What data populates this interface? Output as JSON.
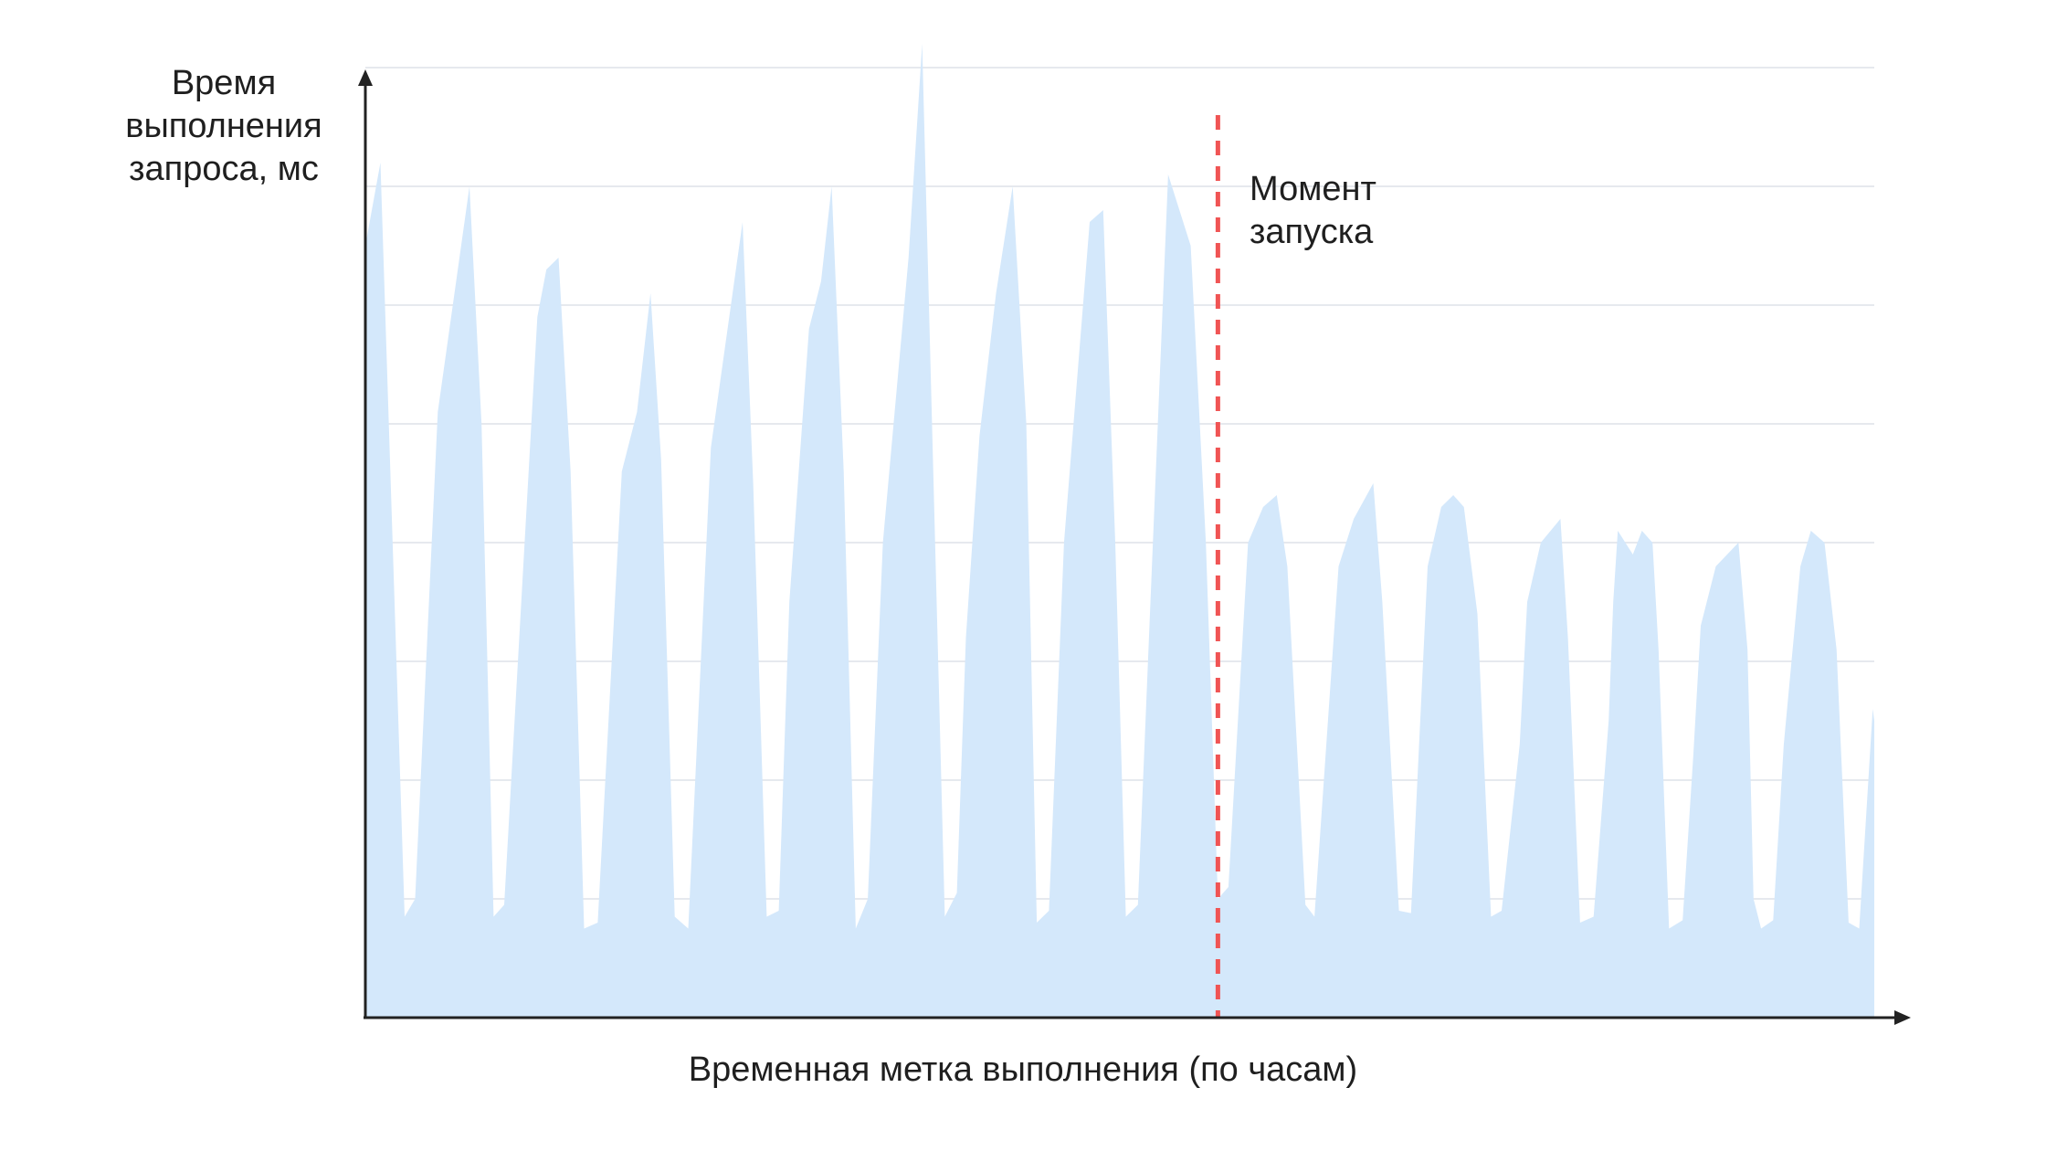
{
  "chart_data": {
    "type": "area",
    "ylabel": [
      "Время",
      "выполнения",
      "запроса, мс"
    ],
    "xlabel": "Временная метка выполнения (по часам)",
    "marker": {
      "label": [
        "Момент",
        "запуска"
      ],
      "x": 0.565
    },
    "xlim": [
      0,
      1
    ],
    "ylim": [
      0,
      8
    ],
    "grid": true,
    "fill_color": "#d4e8fb",
    "marker_color": "#f05454",
    "axis_color": "#222222",
    "grid_color": "#e6e9ee",
    "points": [
      [
        0.0,
        6.5
      ],
      [
        0.01,
        7.2
      ],
      [
        0.026,
        0.85
      ],
      [
        0.033,
        1.0
      ],
      [
        0.048,
        5.1
      ],
      [
        0.069,
        7.0
      ],
      [
        0.077,
        5.0
      ],
      [
        0.085,
        0.85
      ],
      [
        0.092,
        0.95
      ],
      [
        0.114,
        5.9
      ],
      [
        0.12,
        6.3
      ],
      [
        0.128,
        6.4
      ],
      [
        0.136,
        4.6
      ],
      [
        0.145,
        0.75
      ],
      [
        0.154,
        0.8
      ],
      [
        0.17,
        4.6
      ],
      [
        0.18,
        5.1
      ],
      [
        0.189,
        6.1
      ],
      [
        0.196,
        4.7
      ],
      [
        0.205,
        0.85
      ],
      [
        0.214,
        0.75
      ],
      [
        0.229,
        4.8
      ],
      [
        0.25,
        6.7
      ],
      [
        0.257,
        4.5
      ],
      [
        0.266,
        0.85
      ],
      [
        0.274,
        0.9
      ],
      [
        0.281,
        3.5
      ],
      [
        0.294,
        5.8
      ],
      [
        0.302,
        6.2
      ],
      [
        0.309,
        7.0
      ],
      [
        0.317,
        4.6
      ],
      [
        0.325,
        0.75
      ],
      [
        0.333,
        1.0
      ],
      [
        0.343,
        4.0
      ],
      [
        0.36,
        6.4
      ],
      [
        0.369,
        8.2
      ],
      [
        0.384,
        0.85
      ],
      [
        0.392,
        1.05
      ],
      [
        0.398,
        3.2
      ],
      [
        0.407,
        4.9
      ],
      [
        0.418,
        6.1
      ],
      [
        0.429,
        7.0
      ],
      [
        0.438,
        5.0
      ],
      [
        0.445,
        0.8
      ],
      [
        0.453,
        0.9
      ],
      [
        0.463,
        4.0
      ],
      [
        0.48,
        6.7
      ],
      [
        0.489,
        6.8
      ],
      [
        0.497,
        4.0
      ],
      [
        0.504,
        0.85
      ],
      [
        0.512,
        0.95
      ],
      [
        0.532,
        7.1
      ],
      [
        0.547,
        6.5
      ],
      [
        0.557,
        4.0
      ],
      [
        0.565,
        1.0
      ],
      [
        0.572,
        1.1
      ],
      [
        0.585,
        4.0
      ],
      [
        0.595,
        4.3
      ],
      [
        0.604,
        4.4
      ],
      [
        0.611,
        3.8
      ],
      [
        0.623,
        0.95
      ],
      [
        0.629,
        0.85
      ],
      [
        0.645,
        3.8
      ],
      [
        0.655,
        4.2
      ],
      [
        0.668,
        4.5
      ],
      [
        0.674,
        3.5
      ],
      [
        0.685,
        0.9
      ],
      [
        0.693,
        0.88
      ],
      [
        0.704,
        3.8
      ],
      [
        0.713,
        4.3
      ],
      [
        0.721,
        4.4
      ],
      [
        0.728,
        4.3
      ],
      [
        0.737,
        3.4
      ],
      [
        0.746,
        0.85
      ],
      [
        0.753,
        0.9
      ],
      [
        0.765,
        2.3
      ],
      [
        0.77,
        3.5
      ],
      [
        0.779,
        4.0
      ],
      [
        0.792,
        4.2
      ],
      [
        0.797,
        3.2
      ],
      [
        0.805,
        0.8
      ],
      [
        0.814,
        0.85
      ],
      [
        0.824,
        2.5
      ],
      [
        0.827,
        3.5
      ],
      [
        0.83,
        4.1
      ],
      [
        0.84,
        3.9
      ],
      [
        0.846,
        4.1
      ],
      [
        0.853,
        4.0
      ],
      [
        0.857,
        3.1
      ],
      [
        0.864,
        0.75
      ],
      [
        0.873,
        0.82
      ],
      [
        0.88,
        2.2
      ],
      [
        0.885,
        3.3
      ],
      [
        0.895,
        3.8
      ],
      [
        0.91,
        4.0
      ],
      [
        0.916,
        3.1
      ],
      [
        0.92,
        1.0
      ],
      [
        0.925,
        0.75
      ],
      [
        0.933,
        0.82
      ],
      [
        0.94,
        2.3
      ],
      [
        0.951,
        3.8
      ],
      [
        0.958,
        4.1
      ],
      [
        0.967,
        4.0
      ],
      [
        0.975,
        3.1
      ],
      [
        0.983,
        0.8
      ],
      [
        0.99,
        0.75
      ],
      [
        0.999,
        2.6
      ],
      [
        1.0,
        2.5
      ]
    ]
  }
}
